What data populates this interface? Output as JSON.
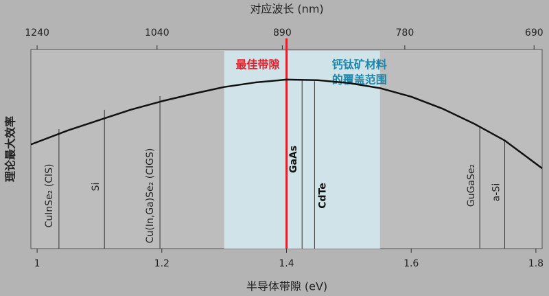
{
  "chart_data": {
    "type": "line",
    "x2_label": "对应波长 (nm)",
    "x_label": "半导体带隙 (eV)",
    "y_label": "理论最大效率",
    "x": [
      0.99,
      1.05,
      1.1,
      1.15,
      1.2,
      1.25,
      1.3,
      1.35,
      1.4,
      1.45,
      1.5,
      1.55,
      1.6,
      1.65,
      1.7,
      1.75,
      1.81
    ],
    "series": [
      {
        "color": "#111111",
        "values": [
          18.3,
          20.8,
          22.6,
          24.4,
          25.9,
          27.2,
          28.4,
          29.2,
          29.7,
          29.6,
          29.1,
          28.2,
          26.7,
          24.6,
          22.0,
          19.0,
          14.1
        ]
      }
    ],
    "xlim": [
      0.99,
      1.81
    ],
    "xticks": [
      1,
      1.2,
      1.4,
      1.6,
      1.8
    ],
    "ylim": [
      0,
      35
    ],
    "x2ticks": [
      1240,
      1040,
      890,
      780,
      690
    ],
    "optimal_band": {
      "label": "最佳带隙",
      "x": 1.4,
      "color": "#e0202a"
    },
    "perovskite_range": {
      "label_lines": [
        "钙钛矿材料",
        "的覆盖范围"
      ],
      "x": [
        1.3,
        1.55
      ],
      "color": "#cfe3e8",
      "label_color": "#1f86a8"
    },
    "materials": [
      {
        "name": "CuInSe₂ (CIS)",
        "x": 1.035,
        "value": 21.0
      },
      {
        "name": "Si",
        "x": 1.108,
        "value": 24.4
      },
      {
        "name": "Cu(In,Ga)Se₂ (CIGS)",
        "x": 1.197,
        "value": 26.8
      },
      {
        "name": "GaAs",
        "x": 1.425,
        "value": 29.6
      },
      {
        "name": "CdTe",
        "x": 1.445,
        "value": 29.4
      },
      {
        "name": "GuGaSe₂",
        "x": 1.71,
        "value": 21.6
      },
      {
        "name": "a-Si",
        "x": 1.75,
        "value": 18.9
      }
    ]
  }
}
